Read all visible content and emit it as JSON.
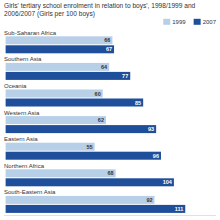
{
  "chart_data": {
    "type": "bar",
    "orientation": "horizontal",
    "title": "Girls' tertiary school enrolment in relation to boys', 1998/1999 and\n2006/2007 (Girls per 100 boys)",
    "categories": [
      "Sub-Saharan Africa",
      "Southern Asia",
      "Oceania",
      "Western Asia",
      "Eastern Asia",
      "Northern Africa",
      "South-Eastern Asia"
    ],
    "series": [
      {
        "name": "1999",
        "color": "#b8cfe8",
        "values": [
          66,
          64,
          60,
          62,
          55,
          68,
          92
        ]
      },
      {
        "name": "2007",
        "color": "#1f4e9b",
        "values": [
          67,
          77,
          85,
          93,
          96,
          104,
          111
        ]
      }
    ],
    "xlim": [
      -1,
      130
    ],
    "data_labels": true,
    "tick_labels": "y",
    "legend": "upper-right",
    "grid": false
  }
}
